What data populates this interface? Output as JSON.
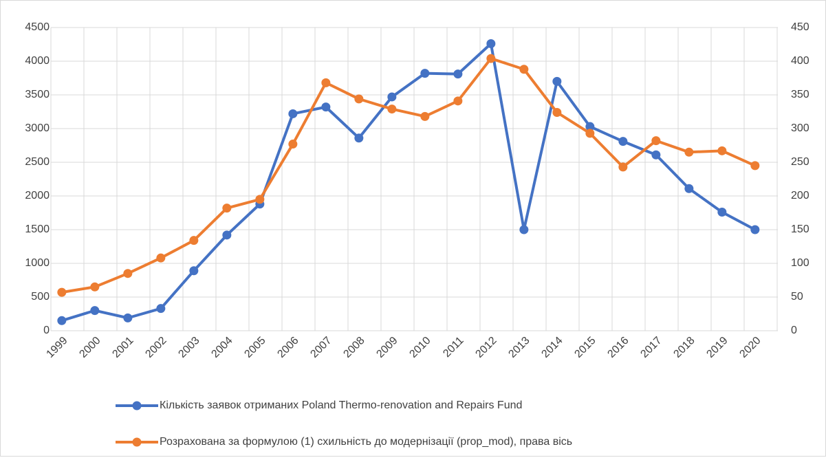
{
  "chart_data": {
    "type": "line",
    "categories": [
      "1999",
      "2000",
      "2001",
      "2002",
      "2003",
      "2004",
      "2005",
      "2006",
      "2007",
      "2008",
      "2009",
      "2010",
      "2011",
      "2012",
      "2013",
      "2014",
      "2015",
      "2016",
      "2017",
      "2018",
      "2019",
      "2020"
    ],
    "series": [
      {
        "name": "Кількість заявок отриманих Poland Thermo-renovation and Repairs Fund",
        "color": "#4472c4",
        "values": [
          150,
          300,
          190,
          330,
          890,
          1420,
          1880,
          3220,
          3320,
          2860,
          3470,
          3820,
          3810,
          4260,
          1500,
          3700,
          3030,
          2810,
          2610,
          2110,
          1760,
          1500
        ]
      },
      {
        "name": "Розрахована за формулою (1) схильність до модернізації (prop_mod), права вісь",
        "color": "#ed7d31",
        "axis": "y2",
        "values": [
          57,
          65,
          85,
          108,
          134,
          182,
          195,
          277,
          368,
          344,
          329,
          318,
          341,
          404,
          388,
          324,
          293,
          243,
          282,
          265,
          267,
          245
        ]
      }
    ],
    "ylim": [
      0,
      4500
    ],
    "yticks": [
      0,
      500,
      1000,
      1500,
      2000,
      2500,
      3000,
      3500,
      4000,
      4500
    ],
    "y2lim": [
      0,
      450
    ],
    "y2ticks": [
      0,
      50,
      100,
      150,
      200,
      250,
      300,
      350,
      400,
      450
    ],
    "grid": true,
    "legend": "bottom"
  }
}
